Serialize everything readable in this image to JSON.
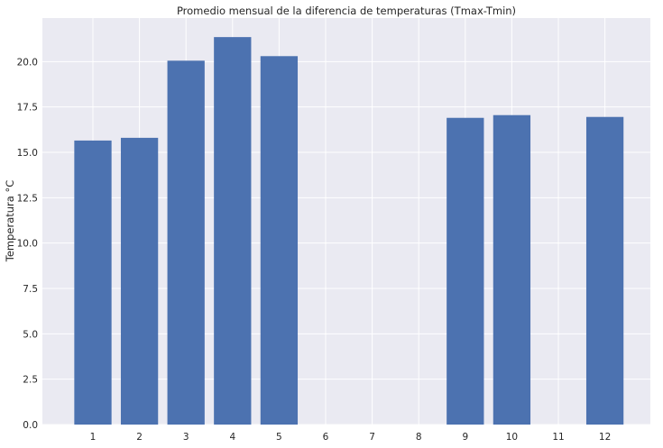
{
  "chart_data": {
    "type": "bar",
    "title": "Promedio mensual de la diferencia de temperaturas (Tmax-Tmin)",
    "xlabel": "",
    "ylabel": "Temperatura °C",
    "categories": [
      "1",
      "2",
      "3",
      "4",
      "5",
      "6",
      "7",
      "8",
      "9",
      "10",
      "11",
      "12"
    ],
    "values": [
      15.65,
      15.8,
      20.05,
      21.35,
      20.3,
      null,
      null,
      null,
      16.9,
      17.05,
      null,
      16.95
    ],
    "ylim": [
      0,
      22.4
    ],
    "yticks": [
      "0.0",
      "2.5",
      "5.0",
      "7.5",
      "10.0",
      "12.5",
      "15.0",
      "17.5",
      "20.0"
    ],
    "grid": true,
    "colors": {
      "bar": "#4c72b0",
      "background": "#eaeaf2",
      "grid": "#ffffff"
    }
  }
}
